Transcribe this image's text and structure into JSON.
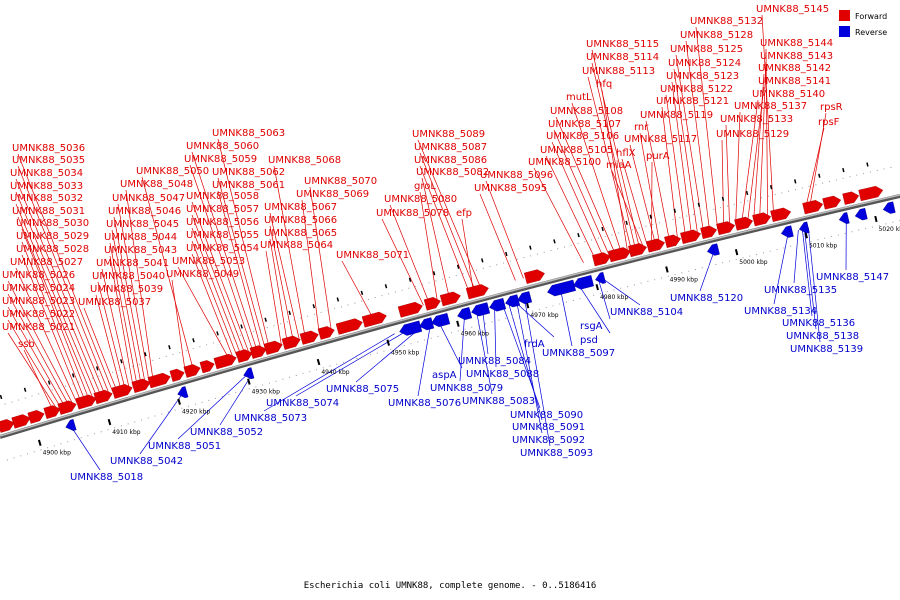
{
  "title": "Escherichia coli UMNK88, complete genome. - 0..5186416",
  "legend": {
    "forward": "Forward",
    "reverse": "Reverse"
  },
  "colors": {
    "forward": "#e00000",
    "reverse": "#0000dd",
    "backbone": "#888888"
  },
  "axis": {
    "start_kbp": 4895,
    "end_kbp": 5024,
    "ticks": [
      "4900 kbp",
      "4910 kbp",
      "4920 kbp",
      "4930 kbp",
      "4940 kbp",
      "4950 kbp",
      "4960 kbp",
      "4970 kbp",
      "4980 kbp",
      "4990 kbp",
      "5000 kbp",
      "5010 kbp",
      "5020 kbp"
    ],
    "tick_values": [
      4900,
      4910,
      4920,
      4930,
      4940,
      4950,
      4960,
      4970,
      4980,
      4990,
      5000,
      5010,
      5020
    ]
  },
  "forward_labels": [
    "ssb",
    "UMNK88_5021",
    "UMNK88_5022",
    "UMNK88_5023",
    "UMNK88_5024",
    "UMNK88_5026",
    "UMNK88_5027",
    "UMNK88_5028",
    "UMNK88_5029",
    "UMNK88_5030",
    "UMNK88_5031",
    "UMNK88_5032",
    "UMNK88_5033",
    "UMNK88_5034",
    "UMNK88_5035",
    "UMNK88_5036",
    "UMNK88_5037",
    "UMNK88_5039",
    "UMNK88_5040",
    "UMNK88_5041",
    "UMNK88_5043",
    "UMNK88_5044",
    "UMNK88_5045",
    "UMNK88_5046",
    "UMNK88_5047",
    "UMNK88_5048",
    "UMNK88_5049",
    "UMNK88_5050",
    "UMNK88_5053",
    "UMNK88_5054",
    "UMNK88_5055",
    "UMNK88_5056",
    "UMNK88_5057",
    "UMNK88_5058",
    "UMNK88_5059",
    "UMNK88_5060",
    "UMNK88_5061",
    "UMNK88_5062",
    "UMNK88_5063",
    "UMNK88_5064",
    "UMNK88_5065",
    "UMNK88_5066",
    "UMNK88_5067",
    "UMNK88_5068",
    "UMNK88_5069",
    "UMNK88_5070",
    "UMNK88_5071",
    "UMNK88_5078",
    "efp",
    "UMNK88_5080",
    "groL",
    "UMNK88_5082",
    "UMNK88_5086",
    "UMNK88_5087",
    "UMNK88_5089",
    "UMNK88_5095",
    "UMNK88_5096",
    "UMNK88_5100",
    "UMNK88_5105",
    "UMNK88_5106",
    "UMNK88_5107",
    "UMNK88_5108",
    "mutL",
    "hfq",
    "UMNK88_5113",
    "UMNK88_5114",
    "UMNK88_5115",
    "miaA",
    "hflX",
    "purA",
    "UMNK88_5117",
    "rnr",
    "UMNK88_5119",
    "UMNK88_5121",
    "UMNK88_5122",
    "UMNK88_5123",
    "UMNK88_5124",
    "UMNK88_5125",
    "UMNK88_5128",
    "UMNK88_5132",
    "UMNK88_5129",
    "UMNK88_5133",
    "UMNK88_5137",
    "UMNK88_5140",
    "UMNK88_5141",
    "UMNK88_5142",
    "UMNK88_5143",
    "UMNK88_5144",
    "UMNK88_5145",
    "rpsF",
    "rpsR"
  ],
  "reverse_labels": [
    "UMNK88_5018",
    "UMNK88_5042",
    "UMNK88_5051",
    "UMNK88_5052",
    "UMNK88_5073",
    "UMNK88_5074",
    "UMNK88_5075",
    "UMNK88_5076",
    "aspA",
    "UMNK88_5079",
    "UMNK88_5083",
    "UMNK88_5084",
    "UMNK88_5088",
    "frdA",
    "UMNK88_5090",
    "UMNK88_5091",
    "UMNK88_5092",
    "UMNK88_5093",
    "UMNK88_5097",
    "psd",
    "rsgA",
    "UMNK88_5104",
    "UMNK88_5120",
    "UMNK88_5134",
    "UMNK88_5135",
    "UMNK88_5136",
    "UMNK88_5138",
    "UMNK88_5139",
    "UMNK88_5147"
  ]
}
